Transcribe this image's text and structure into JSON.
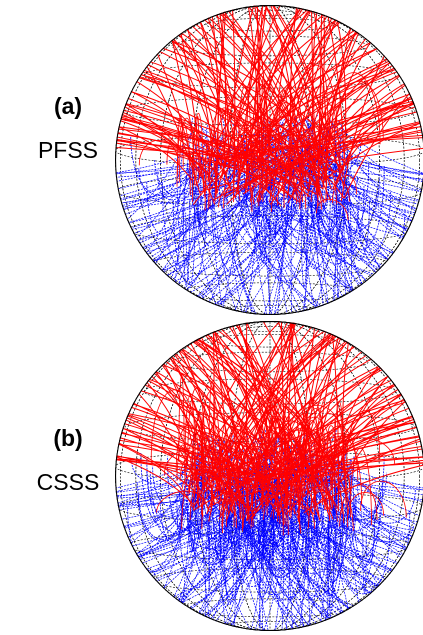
{
  "panels": [
    {
      "label": "(a)",
      "name": "PFSS"
    },
    {
      "label": "(b)",
      "name": "CSSS"
    }
  ]
}
